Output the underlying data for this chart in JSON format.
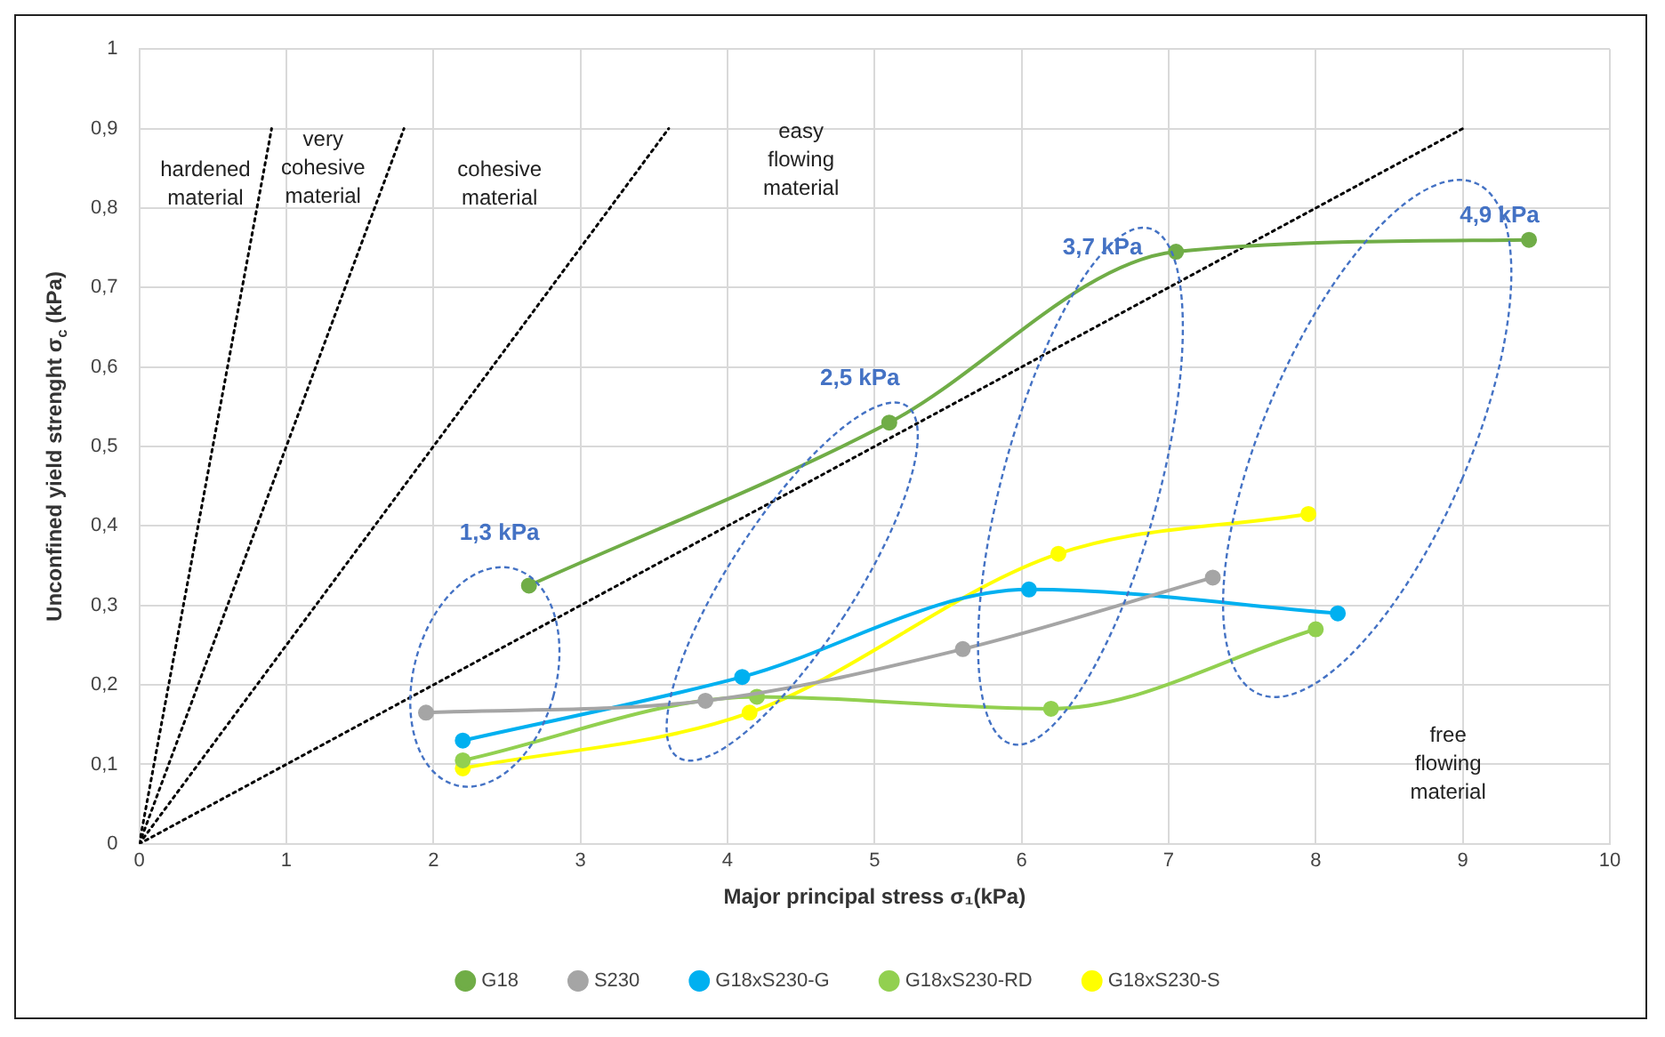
{
  "chart_data": {
    "type": "line",
    "xlabel": "Major principal stress σ₁(kPa)",
    "ylabel": "Unconfined yield strenght σ$_{c}$ (kPa)",
    "xlim": [
      0,
      10
    ],
    "xticks": [
      0,
      1,
      2,
      3,
      4,
      5,
      6,
      7,
      8,
      9,
      10
    ],
    "ylim": [
      0,
      1
    ],
    "yticks": [
      0,
      {
        "value": 0.1,
        "label": "0,1"
      },
      {
        "value": 0.2,
        "label": "0,2"
      },
      {
        "value": 0.3,
        "label": "0,3"
      },
      {
        "value": 0.4,
        "label": "0,4"
      },
      {
        "value": 0.5,
        "label": "0,5"
      },
      {
        "value": 0.6,
        "label": "0,6"
      },
      {
        "value": 0.7,
        "label": "0,7"
      },
      {
        "value": 0.8,
        "label": "0,8"
      },
      {
        "value": 0.9,
        "label": "0,9"
      },
      1
    ],
    "grid": true,
    "legend": "bottom",
    "marker": "circle",
    "line_style": "solid",
    "series": [
      {
        "name": "G18",
        "color": "#70ad47",
        "x": [
          2.65,
          5.1,
          7.05,
          9.45
        ],
        "values": [
          0.325,
          0.53,
          0.745,
          0.76
        ]
      },
      {
        "name": "S230",
        "color": "#a5a5a5",
        "x": [
          1.95,
          3.85,
          5.6,
          7.3
        ],
        "values": [
          0.165,
          0.18,
          0.245,
          0.335
        ]
      },
      {
        "name": "G18xS230-G",
        "color": "#00b0f0",
        "x": [
          2.2,
          4.1,
          6.05,
          8.15
        ],
        "values": [
          0.13,
          0.21,
          0.32,
          0.29
        ]
      },
      {
        "name": "G18xS230-RD",
        "color": "#92d050",
        "x": [
          2.2,
          4.2,
          6.2,
          8.0
        ],
        "values": [
          0.105,
          0.185,
          0.17,
          0.27
        ]
      },
      {
        "name": "G18xS230-S",
        "color": "#ffff00",
        "x": [
          2.2,
          4.15,
          6.25,
          7.95
        ],
        "values": [
          0.095,
          0.165,
          0.365,
          0.415
        ]
      },
      {
        "color": "#000000",
        "x": [
          0,
          0.9
        ],
        "values": [
          0,
          0.9
        ],
        "line_style": "dotted",
        "marker": "none"
      },
      {
        "color": "#000000",
        "x": [
          0,
          1.8
        ],
        "values": [
          0,
          0.9
        ],
        "line_style": "dotted",
        "marker": "none"
      },
      {
        "color": "#000000",
        "x": [
          0,
          3.6
        ],
        "values": [
          0,
          0.9
        ],
        "line_style": "dotted",
        "marker": "none"
      },
      {
        "color": "#000000",
        "x": [
          0,
          9
        ],
        "values": [
          0,
          0.9
        ],
        "line_style": "dotted",
        "marker": "none"
      }
    ],
    "annotations": [
      "1,3 kPa",
      "2,5 kPa",
      "3,7 kPa",
      "4,9 kPa",
      "hardened material",
      "very cohesive material",
      "cohesive material",
      "easy flowing material",
      "free flowing material"
    ]
  }
}
